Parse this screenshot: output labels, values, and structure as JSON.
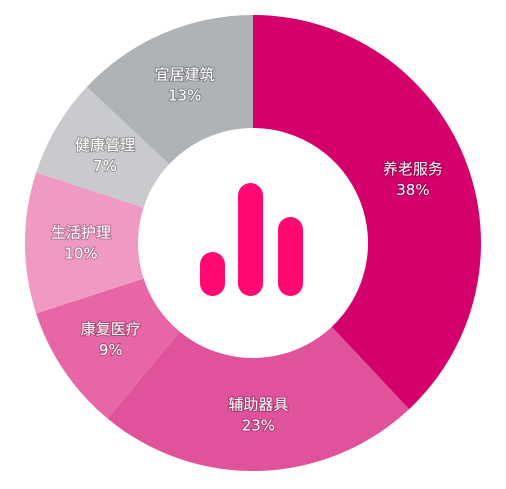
{
  "chart_data": {
    "type": "donut",
    "categories": [
      "养老服务",
      "辅助器具",
      "康复医疗",
      "生活护理",
      "健康管理",
      "宜居建筑"
    ],
    "values": [
      38,
      23,
      9,
      10,
      7,
      13
    ],
    "value_labels": [
      "38%",
      "23%",
      "9%",
      "10%",
      "7%",
      "13%"
    ],
    "colors": [
      "#d4006c",
      "#e0529a",
      "#e766a5",
      "#f09ac3",
      "#c9cacd",
      "#afb2b6"
    ]
  }
}
